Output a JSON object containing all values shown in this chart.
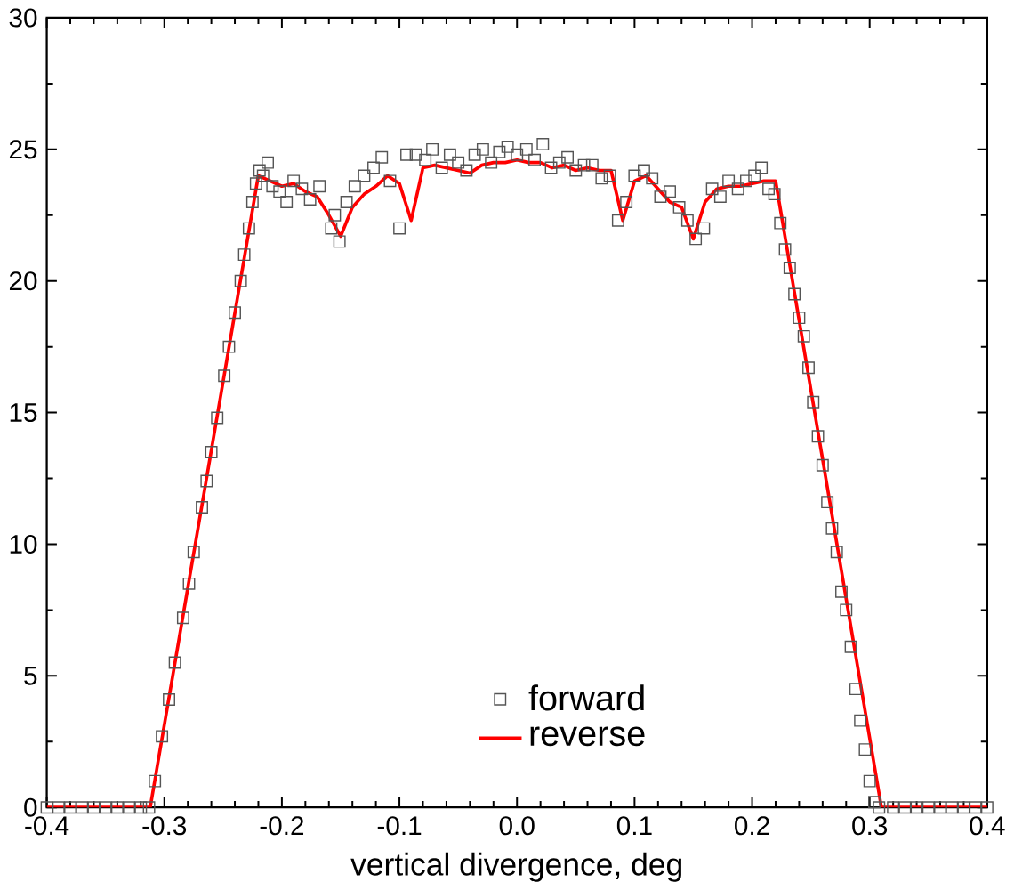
{
  "chart_data": {
    "type": "scatter",
    "xlabel": "vertical divergence, deg",
    "xlim": [
      -0.4,
      0.4
    ],
    "xticks": [
      -0.4,
      -0.3,
      -0.2,
      -0.1,
      {
        "value": 0.0,
        "label": "0.0"
      },
      0.1,
      0.2,
      0.3,
      0.4
    ],
    "ylim": [
      0,
      30
    ],
    "yticks": [
      0,
      5,
      10,
      15,
      20,
      25,
      30
    ],
    "legend": "bottom",
    "grid": false,
    "series": [
      {
        "name": "forward",
        "type": "scatter",
        "marker": "square",
        "color": "#555555",
        "x": [
          -0.4,
          -0.39,
          -0.38,
          -0.37,
          -0.36,
          -0.35,
          -0.34,
          -0.33,
          -0.32,
          -0.313,
          -0.308,
          -0.302,
          -0.296,
          -0.291,
          -0.284,
          -0.279,
          -0.275,
          -0.268,
          -0.264,
          -0.26,
          -0.255,
          -0.249,
          -0.245,
          -0.24,
          -0.235,
          -0.232,
          -0.228,
          -0.225,
          -0.222,
          -0.219,
          -0.216,
          -0.212,
          -0.208,
          -0.202,
          -0.196,
          -0.19,
          -0.183,
          -0.176,
          -0.168,
          -0.158,
          -0.155,
          -0.151,
          -0.145,
          -0.138,
          -0.13,
          -0.122,
          -0.115,
          -0.108,
          -0.1,
          -0.094,
          -0.086,
          -0.078,
          -0.072,
          -0.064,
          -0.057,
          -0.05,
          -0.043,
          -0.036,
          -0.029,
          -0.022,
          -0.015,
          -0.008,
          0.0,
          0.008,
          0.015,
          0.022,
          0.029,
          0.036,
          0.043,
          0.05,
          0.057,
          0.064,
          0.072,
          0.079,
          0.086,
          0.093,
          0.1,
          0.108,
          0.115,
          0.122,
          0.13,
          0.138,
          0.145,
          0.152,
          0.159,
          0.166,
          0.173,
          0.18,
          0.188,
          0.195,
          0.202,
          0.208,
          0.214,
          0.219,
          0.224,
          0.228,
          0.232,
          0.236,
          0.24,
          0.244,
          0.248,
          0.252,
          0.256,
          0.26,
          0.264,
          0.268,
          0.272,
          0.276,
          0.28,
          0.284,
          0.288,
          0.292,
          0.296,
          0.3,
          0.304,
          0.308,
          0.32,
          0.33,
          0.34,
          0.35,
          0.36,
          0.37,
          0.38,
          0.39,
          0.4
        ],
        "values": [
          0,
          0,
          0,
          0,
          0,
          0,
          0,
          0,
          0,
          0,
          1.0,
          2.7,
          4.1,
          5.5,
          7.2,
          8.5,
          9.7,
          11.4,
          12.4,
          13.5,
          14.8,
          16.4,
          17.5,
          18.8,
          20.0,
          21.0,
          22.0,
          23.0,
          23.7,
          24.2,
          24.0,
          24.5,
          23.6,
          23.4,
          23.0,
          23.8,
          23.5,
          23.1,
          23.6,
          22.0,
          22.5,
          21.5,
          23.0,
          23.6,
          24.0,
          24.3,
          24.7,
          23.8,
          22.0,
          24.8,
          24.8,
          24.6,
          25.0,
          24.3,
          24.8,
          24.5,
          24.2,
          24.8,
          25.0,
          24.5,
          24.9,
          25.1,
          24.8,
          25.0,
          24.6,
          25.2,
          24.3,
          24.5,
          24.7,
          24.2,
          24.4,
          24.4,
          23.9,
          24.0,
          22.3,
          23.0,
          24.0,
          24.2,
          23.9,
          23.2,
          23.4,
          22.8,
          22.3,
          21.6,
          22.0,
          23.5,
          23.2,
          23.8,
          23.5,
          23.8,
          24.0,
          24.3,
          23.5,
          23.3,
          22.2,
          21.2,
          20.5,
          19.5,
          18.6,
          17.9,
          16.7,
          15.4,
          14.1,
          13.0,
          11.6,
          10.6,
          9.7,
          8.2,
          7.5,
          6.1,
          4.5,
          3.3,
          2.2,
          1.0,
          0.2,
          0,
          0,
          0,
          0,
          0,
          0,
          0,
          0,
          0,
          0
        ]
      },
      {
        "name": "reverse",
        "type": "line",
        "marker": "none",
        "line_style": "solid",
        "color": "#ff0000",
        "x": [
          -0.4,
          -0.312,
          -0.22,
          -0.21,
          -0.2,
          -0.19,
          -0.18,
          -0.17,
          -0.16,
          -0.15,
          -0.14,
          -0.13,
          -0.12,
          -0.11,
          -0.1,
          -0.09,
          -0.08,
          -0.07,
          -0.06,
          -0.05,
          -0.04,
          -0.03,
          -0.02,
          -0.01,
          0.0,
          0.01,
          0.02,
          0.03,
          0.04,
          0.05,
          0.06,
          0.07,
          0.08,
          0.09,
          0.1,
          0.11,
          0.12,
          0.13,
          0.14,
          0.15,
          0.16,
          0.17,
          0.18,
          0.19,
          0.2,
          0.21,
          0.22,
          0.31,
          0.4
        ],
        "values": [
          0,
          0,
          24,
          23.8,
          23.6,
          23.7,
          23.4,
          23.2,
          22.5,
          21.7,
          22.8,
          23.3,
          23.6,
          24.0,
          23.7,
          22.3,
          24.3,
          24.4,
          24.3,
          24.2,
          24.1,
          24.4,
          24.5,
          24.5,
          24.6,
          24.5,
          24.5,
          24.3,
          24.4,
          24.2,
          24.3,
          24.2,
          24.2,
          22.3,
          23.8,
          24.0,
          23.5,
          23.0,
          22.8,
          21.6,
          23.0,
          23.5,
          23.6,
          23.6,
          23.7,
          23.8,
          23.8,
          0,
          0
        ]
      }
    ]
  }
}
